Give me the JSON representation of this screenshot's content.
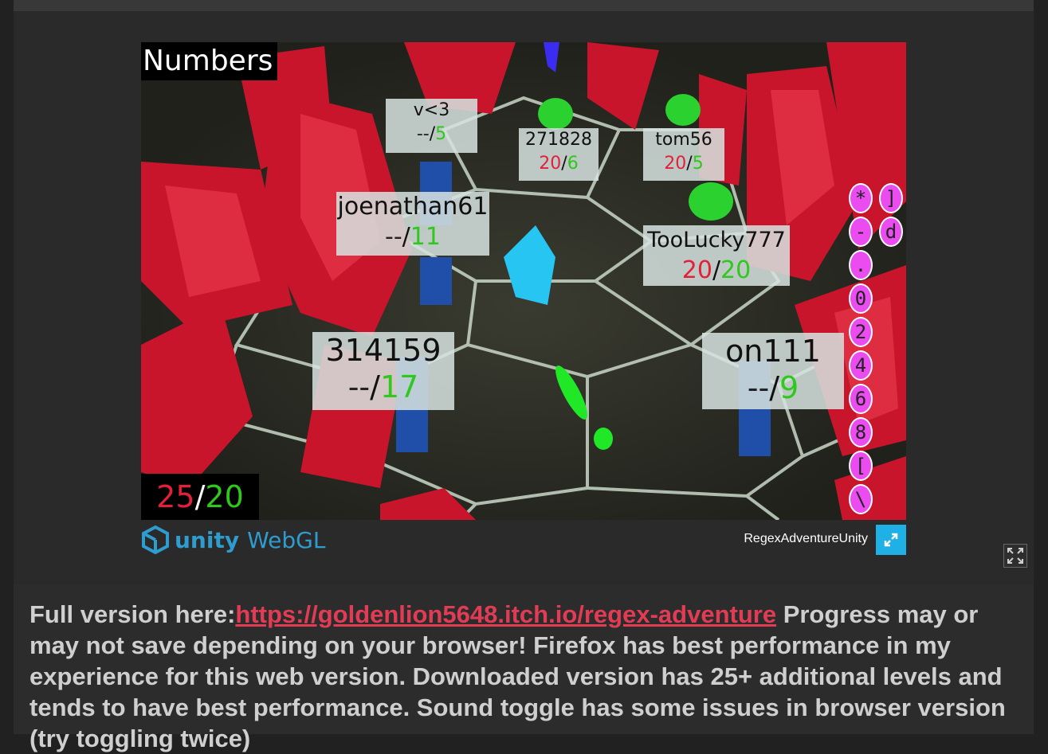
{
  "game": {
    "level_title": "Numbers",
    "score": {
      "current": "25",
      "target": "20"
    },
    "players": [
      {
        "name": "v<3",
        "left": "--",
        "right": "5"
      },
      {
        "name": "271828",
        "left": "20",
        "right": "6"
      },
      {
        "name": "tom56",
        "left": "20",
        "right": "5"
      },
      {
        "name": "joenathan61",
        "left": "--",
        "right": "11"
      },
      {
        "name": "TooLucky777",
        "left": "20",
        "right": "20"
      },
      {
        "name": "314159",
        "left": "--",
        "right": "17"
      },
      {
        "name": "on111",
        "left": "--",
        "right": "9"
      }
    ],
    "runes_col1": [
      "*",
      "-",
      ".",
      "0",
      "2",
      "4",
      "6",
      "8",
      "[",
      "\\"
    ],
    "runes_col2": [
      "]",
      "d"
    ]
  },
  "footer": {
    "unity_label": "unity",
    "webgl_label": "WebGL",
    "app_title": "RegexAdventureUnity"
  },
  "description": {
    "prefix": "Full version here:",
    "link_text": "https://goldenlion5648.itch.io/regex-adventure",
    "body": " Progress may or may not save depending on your browser! Firefox has best performance in my experience for this web version. Downloaded version has 25+ additional levels and tends to have best performance. Sound toggle has some issues in browser version (try toggling twice)"
  },
  "colors": {
    "score_red": "#e41f3a",
    "score_green": "#2fc81c",
    "link": "#e23c55",
    "fullscreen_button": "#1fb0e6",
    "rune": "#ea4cf0"
  }
}
